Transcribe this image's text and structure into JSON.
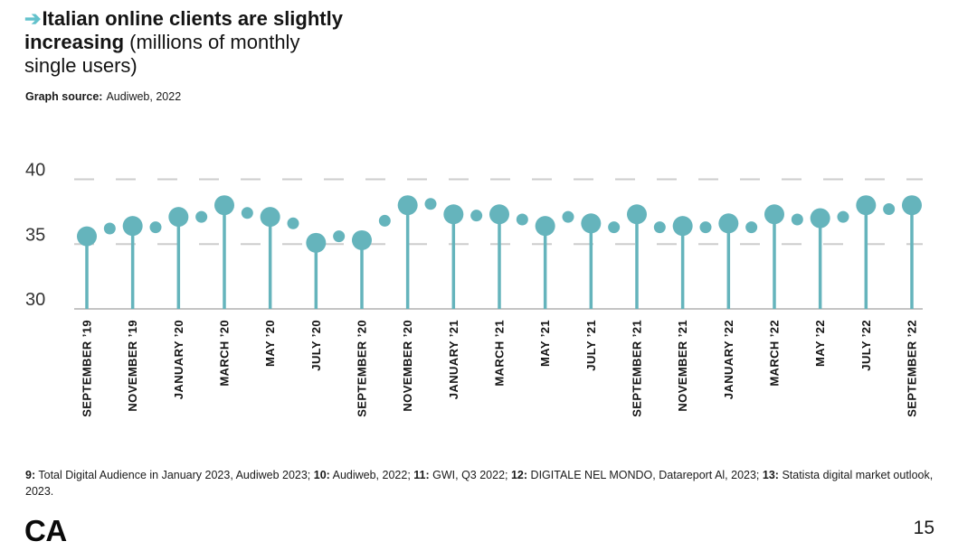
{
  "header": {
    "arrow_icon": "➔",
    "title_bold": "Italian online clients are slightly increasing",
    "title_regular": " (millions of monthly single users)",
    "source_label": "Graph source:",
    "source_value": "Audiweb, 2022"
  },
  "chart_data": {
    "type": "scatter",
    "style": "lollipop",
    "title": "Italian online clients are slightly increasing (millions of monthly single users)",
    "ylabel": "millions of monthly single users",
    "source": "Audiweb, 2022",
    "ylim": [
      30,
      40
    ],
    "yticks": [
      30,
      35,
      40
    ],
    "dashed_gridlines": [
      35,
      40
    ],
    "grid": "dashed horizontal lines at 35 and 40, solid baseline at 30",
    "legend": "none",
    "accent_color": "#65b4bc",
    "gridline_color": "#cdcdcd",
    "baseline_color": "#b0b0b0",
    "points": [
      {
        "label": "SEPTEMBER ’19",
        "value": 35.6,
        "major": true
      },
      {
        "label": "",
        "value": 36.2,
        "major": false
      },
      {
        "label": "NOVEMBER ’19",
        "value": 36.4,
        "major": true
      },
      {
        "label": "",
        "value": 36.3,
        "major": false
      },
      {
        "label": "JANUARY ’20",
        "value": 37.1,
        "major": true
      },
      {
        "label": "",
        "value": 37.1,
        "major": false
      },
      {
        "label": "MARCH ’20",
        "value": 38.0,
        "major": true
      },
      {
        "label": "",
        "value": 37.4,
        "major": false
      },
      {
        "label": "MAY ’20",
        "value": 37.1,
        "major": true
      },
      {
        "label": "",
        "value": 36.6,
        "major": false
      },
      {
        "label": "JULY ’20",
        "value": 35.1,
        "major": true
      },
      {
        "label": "",
        "value": 35.6,
        "major": false
      },
      {
        "label": "SEPTEMBER ’20",
        "value": 35.3,
        "major": true
      },
      {
        "label": "",
        "value": 36.8,
        "major": false
      },
      {
        "label": "NOVEMBER ’20",
        "value": 38.0,
        "major": true
      },
      {
        "label": "",
        "value": 38.1,
        "major": false
      },
      {
        "label": "JANUARY ’21",
        "value": 37.3,
        "major": true
      },
      {
        "label": "",
        "value": 37.2,
        "major": false
      },
      {
        "label": "MARCH ’21",
        "value": 37.3,
        "major": true
      },
      {
        "label": "",
        "value": 36.9,
        "major": false
      },
      {
        "label": "MAY ’21",
        "value": 36.4,
        "major": true
      },
      {
        "label": "",
        "value": 37.1,
        "major": false
      },
      {
        "label": "JULY ’21",
        "value": 36.6,
        "major": true
      },
      {
        "label": "",
        "value": 36.3,
        "major": false
      },
      {
        "label": "SEPTEMBER ’21",
        "value": 37.3,
        "major": true
      },
      {
        "label": "",
        "value": 36.3,
        "major": false
      },
      {
        "label": "NOVEMBER ’21",
        "value": 36.4,
        "major": true
      },
      {
        "label": "",
        "value": 36.3,
        "major": false
      },
      {
        "label": "JANUARY ’22",
        "value": 36.6,
        "major": true
      },
      {
        "label": "",
        "value": 36.3,
        "major": false
      },
      {
        "label": "MARCH ’22",
        "value": 37.3,
        "major": true
      },
      {
        "label": "",
        "value": 36.9,
        "major": false
      },
      {
        "label": "MAY ’22",
        "value": 37.0,
        "major": true
      },
      {
        "label": "",
        "value": 37.1,
        "major": false
      },
      {
        "label": "JULY ’22",
        "value": 38.0,
        "major": true
      },
      {
        "label": "",
        "value": 37.7,
        "major": false
      },
      {
        "label": "SEPTEMBER ’22",
        "value": 38.0,
        "major": true
      }
    ]
  },
  "footer": {
    "notes": [
      {
        "ref": "9:",
        "text": "Total Digital Audience in January 2023, Audiweb 2023;"
      },
      {
        "ref": "10:",
        "text": "Audiweb, 2022;"
      },
      {
        "ref": "11:",
        "text": "GWI, Q3 2022;"
      },
      {
        "ref": "12:",
        "text": "DIGITALE NEL MONDO, Datareport Al, 2023;"
      },
      {
        "ref": "13:",
        "text": "Statista digital market outlook, 2023."
      }
    ],
    "logo": "CA",
    "page_number": "15"
  }
}
